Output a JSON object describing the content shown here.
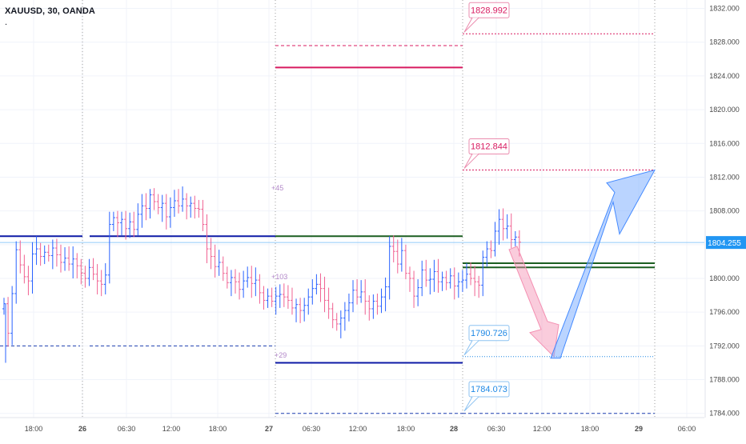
{
  "header": {
    "symbol_label": "XAUUSD, 30, OANDA",
    "status_dot": "."
  },
  "colors": {
    "grid": "#f0f3fa",
    "up": "#2962ff",
    "down": "#f06292",
    "level_blue": "#0d1aa6",
    "level_green": "#1b5e20",
    "level_red": "#d81b60",
    "price_tag": "#2196f3",
    "axis_text": "#4a4a4a"
  },
  "chart_data": {
    "type": "candlestick",
    "symbol": "XAUUSD",
    "timeframe": "30",
    "feed": "OANDA",
    "ylim": [
      1783.5,
      1833
    ],
    "y_ticks": [
      "1832.000",
      "1828.000",
      "1824.000",
      "1820.000",
      "1816.000",
      "1812.000",
      "1808.000",
      "1804.000",
      "1800.000",
      "1796.000",
      "1792.000",
      "1788.000",
      "1784.000"
    ],
    "x_ticks": [
      {
        "label": "18:00",
        "bold": false
      },
      {
        "label": "26",
        "bold": true
      },
      {
        "label": "06:30",
        "bold": false
      },
      {
        "label": "12:00",
        "bold": false
      },
      {
        "label": "18:00",
        "bold": false
      },
      {
        "label": "27",
        "bold": true
      },
      {
        "label": "06:30",
        "bold": false
      },
      {
        "label": "12:00",
        "bold": false
      },
      {
        "label": "18:00",
        "bold": false
      },
      {
        "label": "28",
        "bold": true
      },
      {
        "label": "06:30",
        "bold": false
      },
      {
        "label": "12:00",
        "bold": false
      },
      {
        "label": "18:00",
        "bold": false
      },
      {
        "label": "29",
        "bold": true
      },
      {
        "label": "06:00",
        "bold": false
      }
    ],
    "current_price": "1804.255",
    "price_labels": [
      {
        "text": "1828.992",
        "price": 1828.992,
        "color": "#d81b60"
      },
      {
        "text": "1812.844",
        "price": 1812.844,
        "color": "#d81b60"
      },
      {
        "text": "1790.726",
        "price": 1790.726,
        "color": "#1e88e5"
      },
      {
        "text": "1784.073",
        "price": 1784.073,
        "color": "#1e88e5"
      }
    ],
    "small_labels": [
      {
        "text": "+45",
        "price": 1810.7
      },
      {
        "text": "+103",
        "price": 1800.2
      },
      {
        "text": "+29",
        "price": 1790.9
      }
    ],
    "levels": [
      {
        "price": 1805.0,
        "style": "solid",
        "color": "#0d1aa6"
      },
      {
        "price": 1792.0,
        "style": "dashed",
        "color": "#1e3fb0"
      },
      {
        "price": 1827.6,
        "style": "dashed",
        "color": "#d81b60"
      },
      {
        "price": 1825.0,
        "style": "solid",
        "color": "#d81b60"
      },
      {
        "price": 1805.0,
        "style": "solid",
        "color": "#1b5e20"
      },
      {
        "price": 1790.0,
        "style": "solid",
        "color": "#0d1aa6"
      },
      {
        "price": 1784.0,
        "style": "dashed",
        "color": "#1e3fb0"
      },
      {
        "price": 1801.8,
        "style": "solid",
        "color": "#1b5e20"
      },
      {
        "price": 1801.3,
        "style": "solid",
        "color": "#1b5e20"
      }
    ],
    "projection": {
      "from": 1803.8,
      "low": 1790.726,
      "target": 1812.844
    },
    "closes": [
      1797.0,
      1793.5,
      1798.2,
      1803.4,
      1801.6,
      1800.2,
      1799.7,
      1802.9,
      1803.5,
      1802.6,
      1803.1,
      1802.7,
      1803.6,
      1802.8,
      1801.9,
      1802.4,
      1801.7,
      1802.3,
      1801.5,
      1800.6,
      1800.0,
      1801.3,
      1800.5,
      1799.7,
      1799.3,
      1800.4,
      1806.4,
      1807.2,
      1806.6,
      1807.0,
      1805.9,
      1806.7,
      1805.8,
      1807.6,
      1808.6,
      1808.3,
      1809.9,
      1809.1,
      1808.4,
      1808.9,
      1807.3,
      1808.4,
      1809.2,
      1808.6,
      1809.4,
      1808.6,
      1808.9,
      1808.3,
      1808.2,
      1806.4,
      1803.5,
      1802.6,
      1801.4,
      1801.9,
      1800.6,
      1799.5,
      1800.1,
      1799.6,
      1798.7,
      1799.7,
      1800.1,
      1799.4,
      1799.8,
      1798.3,
      1797.4,
      1797.9,
      1797.3,
      1797.9,
      1798.1,
      1797.8,
      1797.4,
      1796.5,
      1796.9,
      1796.2,
      1796.8,
      1797.8,
      1798.8,
      1799.3,
      1798.8,
      1797.4,
      1796.4,
      1795.1,
      1794.6,
      1795.3,
      1796.2,
      1797.1,
      1798.6,
      1797.8,
      1798.4,
      1797.3,
      1796.4,
      1797.3,
      1796.7,
      1797.8,
      1799.0,
      1803.8,
      1803.2,
      1801.7,
      1803.3,
      1800.6,
      1800.0,
      1797.9,
      1798.9,
      1801.0,
      1799.8,
      1799.9,
      1800.8,
      1799.6,
      1800.1,
      1799.5,
      1800.3,
      1799.1,
      1799.6,
      1799.8,
      1800.5,
      1800.0,
      1799.6,
      1799.2,
      1802.5,
      1803.5,
      1803.3,
      1805.6,
      1807.0,
      1805.9,
      1806.2,
      1804.6,
      1804.9,
      1804.3
    ]
  }
}
